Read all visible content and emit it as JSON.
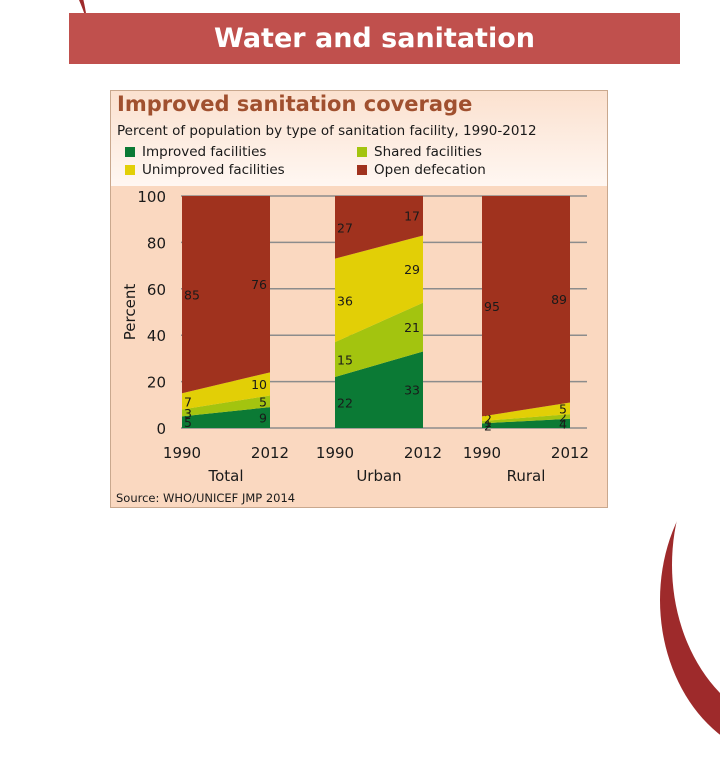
{
  "slide": {
    "title": "Water and sanitation"
  },
  "chart_data": {
    "type": "area",
    "title": "Improved sanitation coverage",
    "subtitle": "Percent of population by type of sanitation facility, 1990-2012",
    "ylabel": "Percent",
    "ylim": [
      0,
      100
    ],
    "yticks": [
      0,
      20,
      40,
      60,
      80,
      100
    ],
    "grid": true,
    "legend": [
      {
        "name": "Improved facilities",
        "color": "#0b7a35"
      },
      {
        "name": "Shared facilities",
        "color": "#a3c40f"
      },
      {
        "name": "Unimproved facilities",
        "color": "#e2cf06"
      },
      {
        "name": "Open defecation",
        "color": "#a0321e"
      }
    ],
    "legend_position": "top",
    "groups": [
      {
        "name": "Total",
        "x": [
          "1990",
          "2012"
        ],
        "series": {
          "Improved facilities": [
            5,
            9
          ],
          "Shared facilities": [
            3,
            5
          ],
          "Unimproved facilities": [
            7,
            10
          ],
          "Open defecation": [
            85,
            76
          ]
        }
      },
      {
        "name": "Urban",
        "x": [
          "1990",
          "2012"
        ],
        "series": {
          "Improved facilities": [
            22,
            33
          ],
          "Shared facilities": [
            15,
            21
          ],
          "Unimproved facilities": [
            36,
            29
          ],
          "Open defecation": [
            27,
            17
          ]
        }
      },
      {
        "name": "Rural",
        "x": [
          "1990",
          "2012"
        ],
        "series": {
          "Improved facilities": [
            2,
            4
          ],
          "Shared facilities": [
            1,
            2
          ],
          "Unimproved facilities": [
            2,
            5
          ],
          "Open defecation": [
            95,
            89
          ]
        }
      }
    ],
    "source": "Source:  WHO/UNICEF JMP 2014"
  }
}
